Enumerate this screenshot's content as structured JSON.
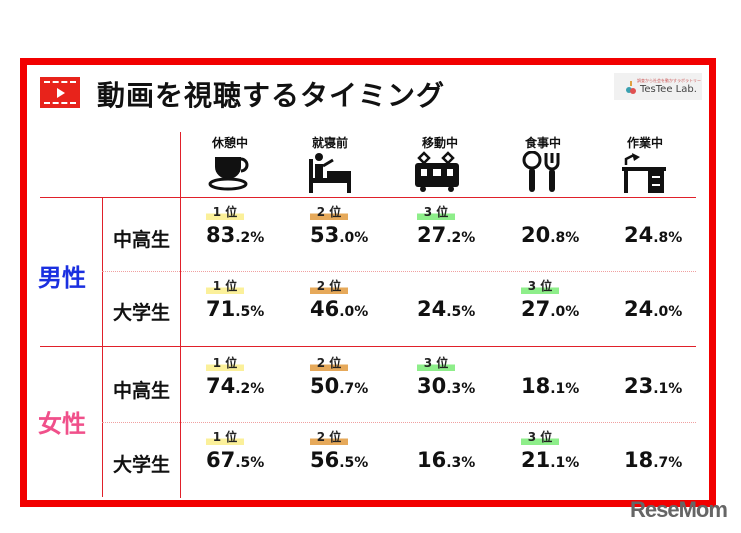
{
  "title": "動画を視聴するタイミング",
  "logo": {
    "tagline": "調査から社会を動かすラボラトリー",
    "name": "TesTee Lab."
  },
  "colors": {
    "frame": "#f20000",
    "male": "#1a2fe0",
    "female": "#f0508a",
    "rank1": "#fbf09a",
    "rank2": "#e6a95a",
    "rank3": "#8eee8a"
  },
  "columns": [
    {
      "label": "休憩中",
      "icon": "coffee-cup-icon"
    },
    {
      "label": "就寝前",
      "icon": "bed-icon"
    },
    {
      "label": "移動中",
      "icon": "train-icon"
    },
    {
      "label": "食事中",
      "icon": "spoon-fork-icon"
    },
    {
      "label": "作業中",
      "icon": "desk-lamp-icon"
    }
  ],
  "groups": [
    {
      "gender": "男性",
      "rows": [
        {
          "grade": "中高生",
          "cells": [
            {
              "rank": "1 位",
              "int": "83",
              "dec": ".2%"
            },
            {
              "rank": "2 位",
              "int": "53",
              "dec": ".0%"
            },
            {
              "rank": "3 位",
              "int": "27",
              "dec": ".2%"
            },
            {
              "rank": "",
              "int": "20",
              "dec": ".8%"
            },
            {
              "rank": "",
              "int": "24",
              "dec": ".8%"
            }
          ]
        },
        {
          "grade": "大学生",
          "cells": [
            {
              "rank": "1 位",
              "int": "71",
              "dec": ".5%"
            },
            {
              "rank": "2 位",
              "int": "46",
              "dec": ".0%"
            },
            {
              "rank": "",
              "int": "24",
              "dec": ".5%"
            },
            {
              "rank": "3 位",
              "int": "27",
              "dec": ".0%"
            },
            {
              "rank": "",
              "int": "24",
              "dec": ".0%"
            }
          ]
        }
      ]
    },
    {
      "gender": "女性",
      "rows": [
        {
          "grade": "中高生",
          "cells": [
            {
              "rank": "1 位",
              "int": "74",
              "dec": ".2%"
            },
            {
              "rank": "2 位",
              "int": "50",
              "dec": ".7%"
            },
            {
              "rank": "3 位",
              "int": "30",
              "dec": ".3%"
            },
            {
              "rank": "",
              "int": "18",
              "dec": ".1%"
            },
            {
              "rank": "",
              "int": "23",
              "dec": ".1%"
            }
          ]
        },
        {
          "grade": "大学生",
          "cells": [
            {
              "rank": "1 位",
              "int": "67",
              "dec": ".5%"
            },
            {
              "rank": "2 位",
              "int": "56",
              "dec": ".5%"
            },
            {
              "rank": "",
              "int": "16",
              "dec": ".3%"
            },
            {
              "rank": "3 位",
              "int": "21",
              "dec": ".1%"
            },
            {
              "rank": "",
              "int": "18",
              "dec": ".7%"
            }
          ]
        }
      ]
    }
  ],
  "watermark": "ReseMom"
}
